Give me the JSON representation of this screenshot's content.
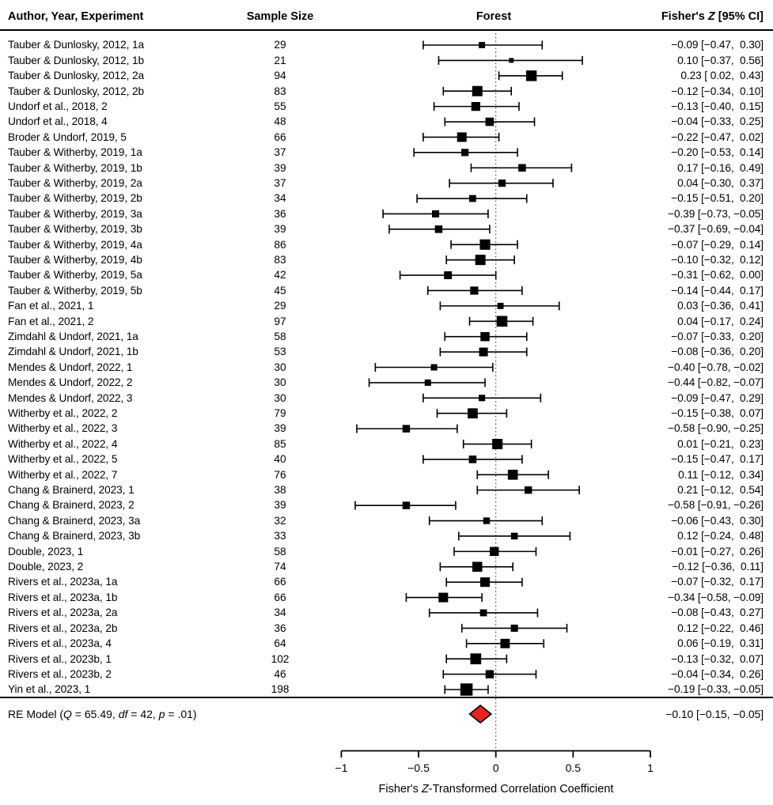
{
  "header": {
    "author": "Author, Year, Experiment",
    "sample_size": "Sample Size",
    "forest": "Forest",
    "fisher_parts": [
      {
        "t": "Fisher's "
      },
      {
        "t": "Z",
        "i": true
      },
      {
        "t": " [95% CI]"
      }
    ]
  },
  "colors": {
    "ink": "#000000",
    "summary_diamond_fill": "#e8231d"
  },
  "chart_data": {
    "type": "forest",
    "x_axis": {
      "title_parts": [
        {
          "t": "Fisher's "
        },
        {
          "t": "Z",
          "i": true
        },
        {
          "t": "-Transformed Correlation Coefficient"
        }
      ],
      "ticks": [
        -1,
        -0.5,
        0,
        0.5,
        1
      ],
      "tick_labels": [
        "−1",
        "−0.5",
        "0",
        "0.5",
        "1"
      ],
      "xlim": [
        -1,
        1
      ],
      "zero_reference_line": 0,
      "zero_line_style": "dotted"
    },
    "studies": [
      {
        "label": "Tauber & Dunlosky, 2012, 1a",
        "n": 29,
        "est": -0.09,
        "lo": -0.47,
        "hi": 0.3,
        "display": "−0.09 [−0.47,  0.30]"
      },
      {
        "label": "Tauber & Dunlosky, 2012, 1b",
        "n": 21,
        "est": 0.1,
        "lo": -0.37,
        "hi": 0.56,
        "display": "0.10 [−0.37,  0.56]"
      },
      {
        "label": "Tauber & Dunlosky, 2012, 2a",
        "n": 94,
        "est": 0.23,
        "lo": 0.02,
        "hi": 0.43,
        "display": "0.23 [ 0.02,  0.43]"
      },
      {
        "label": "Tauber & Dunlosky, 2012, 2b",
        "n": 83,
        "est": -0.12,
        "lo": -0.34,
        "hi": 0.1,
        "display": "−0.12 [−0.34,  0.10]"
      },
      {
        "label": "Undorf et al., 2018, 2",
        "n": 55,
        "est": -0.13,
        "lo": -0.4,
        "hi": 0.15,
        "display": "−0.13 [−0.40,  0.15]"
      },
      {
        "label": "Undorf et al., 2018, 4",
        "n": 48,
        "est": -0.04,
        "lo": -0.33,
        "hi": 0.25,
        "display": "−0.04 [−0.33,  0.25]"
      },
      {
        "label": "Broder & Undorf, 2019, 5",
        "n": 66,
        "est": -0.22,
        "lo": -0.47,
        "hi": 0.02,
        "display": "−0.22 [−0.47,  0.02]"
      },
      {
        "label": "Tauber & Witherby, 2019, 1a",
        "n": 37,
        "est": -0.2,
        "lo": -0.53,
        "hi": 0.14,
        "display": "−0.20 [−0.53,  0.14]"
      },
      {
        "label": "Tauber & Witherby, 2019, 1b",
        "n": 39,
        "est": 0.17,
        "lo": -0.16,
        "hi": 0.49,
        "display": "0.17 [−0.16,  0.49]"
      },
      {
        "label": "Tauber & Witherby, 2019, 2a",
        "n": 37,
        "est": 0.04,
        "lo": -0.3,
        "hi": 0.37,
        "display": "0.04 [−0.30,  0.37]"
      },
      {
        "label": "Tauber & Witherby, 2019, 2b",
        "n": 34,
        "est": -0.15,
        "lo": -0.51,
        "hi": 0.2,
        "display": "−0.15 [−0.51,  0.20]"
      },
      {
        "label": "Tauber & Witherby, 2019, 3a",
        "n": 36,
        "est": -0.39,
        "lo": -0.73,
        "hi": -0.05,
        "display": "−0.39 [−0.73, −0.05]"
      },
      {
        "label": "Tauber & Witherby, 2019, 3b",
        "n": 39,
        "est": -0.37,
        "lo": -0.69,
        "hi": -0.04,
        "display": "−0.37 [−0.69, −0.04]"
      },
      {
        "label": "Tauber & Witherby, 2019, 4a",
        "n": 86,
        "est": -0.07,
        "lo": -0.29,
        "hi": 0.14,
        "display": "−0.07 [−0.29,  0.14]"
      },
      {
        "label": "Tauber & Witherby, 2019, 4b",
        "n": 83,
        "est": -0.1,
        "lo": -0.32,
        "hi": 0.12,
        "display": "−0.10 [−0.32,  0.12]"
      },
      {
        "label": "Tauber & Witherby, 2019, 5a",
        "n": 42,
        "est": -0.31,
        "lo": -0.62,
        "hi": 0.0,
        "display": "−0.31 [−0.62,  0.00]"
      },
      {
        "label": "Tauber & Witherby, 2019, 5b",
        "n": 45,
        "est": -0.14,
        "lo": -0.44,
        "hi": 0.17,
        "display": "−0.14 [−0.44,  0.17]"
      },
      {
        "label": "Fan et al., 2021, 1",
        "n": 29,
        "est": 0.03,
        "lo": -0.36,
        "hi": 0.41,
        "display": "0.03 [−0.36,  0.41]"
      },
      {
        "label": "Fan et al., 2021, 2",
        "n": 97,
        "est": 0.04,
        "lo": -0.17,
        "hi": 0.24,
        "display": "0.04 [−0.17,  0.24]"
      },
      {
        "label": "Zimdahl & Undorf, 2021, 1a",
        "n": 58,
        "est": -0.07,
        "lo": -0.33,
        "hi": 0.2,
        "display": "−0.07 [−0.33,  0.20]"
      },
      {
        "label": "Zimdahl & Undorf, 2021, 1b",
        "n": 53,
        "est": -0.08,
        "lo": -0.36,
        "hi": 0.2,
        "display": "−0.08 [−0.36,  0.20]"
      },
      {
        "label": "Mendes & Undorf, 2022, 1",
        "n": 30,
        "est": -0.4,
        "lo": -0.78,
        "hi": -0.02,
        "display": "−0.40 [−0.78, −0.02]"
      },
      {
        "label": "Mendes & Undorf, 2022, 2",
        "n": 30,
        "est": -0.44,
        "lo": -0.82,
        "hi": -0.07,
        "display": "−0.44 [−0.82, −0.07]"
      },
      {
        "label": "Mendes & Undorf, 2022, 3",
        "n": 30,
        "est": -0.09,
        "lo": -0.47,
        "hi": 0.29,
        "display": "−0.09 [−0.47,  0.29]"
      },
      {
        "label": "Witherby et al., 2022, 2",
        "n": 79,
        "est": -0.15,
        "lo": -0.38,
        "hi": 0.07,
        "display": "−0.15 [−0.38,  0.07]"
      },
      {
        "label": "Witherby et al., 2022, 3",
        "n": 39,
        "est": -0.58,
        "lo": -0.9,
        "hi": -0.25,
        "display": "−0.58 [−0.90, −0.25]"
      },
      {
        "label": "Witherby et al., 2022, 4",
        "n": 85,
        "est": 0.01,
        "lo": -0.21,
        "hi": 0.23,
        "display": "0.01 [−0.21,  0.23]"
      },
      {
        "label": "Witherby et al., 2022, 5",
        "n": 40,
        "est": -0.15,
        "lo": -0.47,
        "hi": 0.17,
        "display": "−0.15 [−0.47,  0.17]"
      },
      {
        "label": "Witherby et al., 2022, 7",
        "n": 76,
        "est": 0.11,
        "lo": -0.12,
        "hi": 0.34,
        "display": "0.11 [−0.12,  0.34]"
      },
      {
        "label": "Chang & Brainerd, 2023, 1",
        "n": 38,
        "est": 0.21,
        "lo": -0.12,
        "hi": 0.54,
        "display": "0.21 [−0.12,  0.54]"
      },
      {
        "label": "Chang & Brainerd, 2023, 2",
        "n": 39,
        "est": -0.58,
        "lo": -0.91,
        "hi": -0.26,
        "display": "−0.58 [−0.91, −0.26]"
      },
      {
        "label": "Chang & Brainerd, 2023, 3a",
        "n": 32,
        "est": -0.06,
        "lo": -0.43,
        "hi": 0.3,
        "display": "−0.06 [−0.43,  0.30]"
      },
      {
        "label": "Chang & Brainerd, 2023, 3b",
        "n": 33,
        "est": 0.12,
        "lo": -0.24,
        "hi": 0.48,
        "display": "0.12 [−0.24,  0.48]"
      },
      {
        "label": "Double, 2023, 1",
        "n": 58,
        "est": -0.01,
        "lo": -0.27,
        "hi": 0.26,
        "display": "−0.01 [−0.27,  0.26]"
      },
      {
        "label": "Double, 2023, 2",
        "n": 74,
        "est": -0.12,
        "lo": -0.36,
        "hi": 0.11,
        "display": "−0.12 [−0.36,  0.11]"
      },
      {
        "label": "Rivers et al., 2023a, 1a",
        "n": 66,
        "est": -0.07,
        "lo": -0.32,
        "hi": 0.17,
        "display": "−0.07 [−0.32,  0.17]"
      },
      {
        "label": "Rivers et al., 2023a, 1b",
        "n": 66,
        "est": -0.34,
        "lo": -0.58,
        "hi": -0.09,
        "display": "−0.34 [−0.58, −0.09]"
      },
      {
        "label": "Rivers et al., 2023a, 2a",
        "n": 34,
        "est": -0.08,
        "lo": -0.43,
        "hi": 0.27,
        "display": "−0.08 [−0.43,  0.27]"
      },
      {
        "label": "Rivers et al., 2023a, 2b",
        "n": 36,
        "est": 0.12,
        "lo": -0.22,
        "hi": 0.46,
        "display": "0.12 [−0.22,  0.46]"
      },
      {
        "label": "Rivers et al., 2023a, 4",
        "n": 64,
        "est": 0.06,
        "lo": -0.19,
        "hi": 0.31,
        "display": "0.06 [−0.19,  0.31]"
      },
      {
        "label": "Rivers et al., 2023b, 1",
        "n": 102,
        "est": -0.13,
        "lo": -0.32,
        "hi": 0.07,
        "display": "−0.13 [−0.32,  0.07]"
      },
      {
        "label": "Rivers et al., 2023b, 2",
        "n": 46,
        "est": -0.04,
        "lo": -0.34,
        "hi": 0.26,
        "display": "−0.04 [−0.34,  0.26]"
      },
      {
        "label": "Yin et al., 2023, 1",
        "n": 198,
        "est": -0.19,
        "lo": -0.33,
        "hi": -0.05,
        "display": "−0.19 [−0.33, −0.05]"
      }
    ],
    "summary": {
      "label_parts": [
        {
          "t": "RE Model ("
        },
        {
          "t": "Q",
          "i": true
        },
        {
          "t": " = 65.49, "
        },
        {
          "t": "df",
          "i": true
        },
        {
          "t": " = 42, "
        },
        {
          "t": "p",
          "i": true
        },
        {
          "t": " = .01)"
        }
      ],
      "est": -0.1,
      "lo": -0.15,
      "hi": -0.05,
      "display": "−0.10 [−0.15, −0.05]",
      "Q": 65.49,
      "df": 42,
      "p": ".01"
    }
  }
}
